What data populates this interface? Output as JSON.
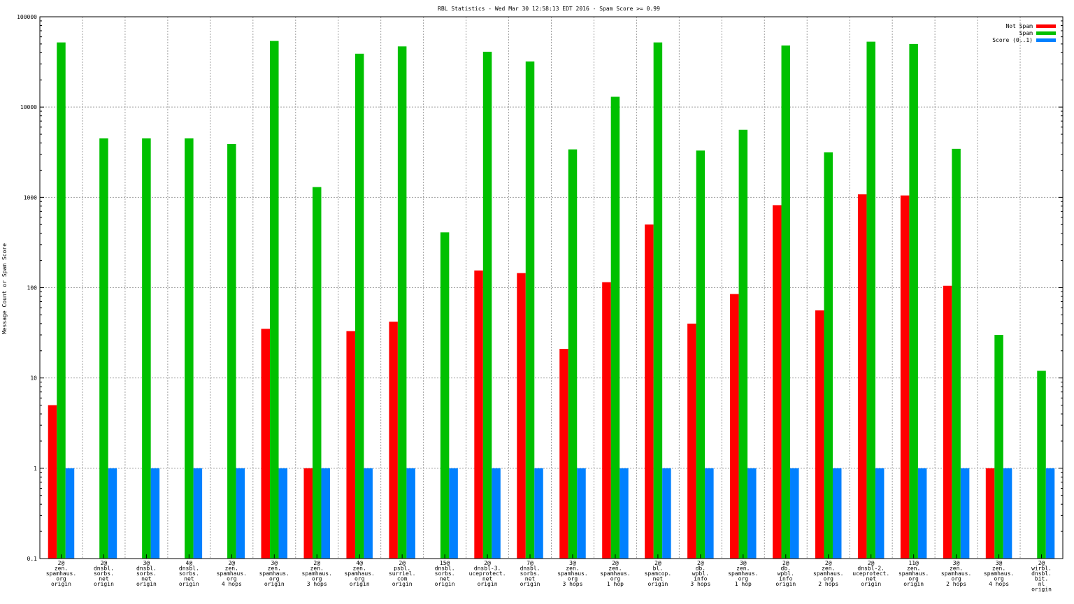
{
  "chart_data": {
    "type": "bar",
    "title": "RBL Statistics - Wed Mar 30 12:58:13 EDT 2016 - Spam Score >= 0.99",
    "xlabel": "",
    "ylabel": "Message Count or Spam Score",
    "yscale": "log",
    "ylim": [
      0.1,
      100000
    ],
    "yticks": [
      {
        "value": 0.1,
        "label": "0.1"
      },
      {
        "value": 1,
        "label": "1"
      },
      {
        "value": 10,
        "label": "10"
      },
      {
        "value": 100,
        "label": "100"
      },
      {
        "value": 1000,
        "label": "1000"
      },
      {
        "value": 10000,
        "label": "10000"
      },
      {
        "value": 100000,
        "label": "100000"
      }
    ],
    "grid": true,
    "legend_position": "top-right",
    "categories": [
      [
        "2@",
        "zen.",
        "spamhaus.",
        "org",
        "origin"
      ],
      [
        "2@",
        "dnsbl.",
        "sorbs.",
        "net",
        "origin"
      ],
      [
        "3@",
        "dnsbl.",
        "sorbs.",
        "net",
        "origin"
      ],
      [
        "4@",
        "dnsbl.",
        "sorbs.",
        "net",
        "origin"
      ],
      [
        "2@",
        "zen.",
        "spamhaus.",
        "org",
        "4 hops"
      ],
      [
        "3@",
        "zen.",
        "spamhaus.",
        "org",
        "origin"
      ],
      [
        "2@",
        "zen.",
        "spamhaus.",
        "org",
        "3 hops"
      ],
      [
        "4@",
        "zen.",
        "spamhaus.",
        "org",
        "origin"
      ],
      [
        "2@",
        "psbl.",
        "surriel.",
        "com",
        "origin"
      ],
      [
        "15@",
        "dnsbl.",
        "sorbs.",
        "net",
        "origin"
      ],
      [
        "2@",
        "dnsbl-3.",
        "uceprotect.",
        "net",
        "origin"
      ],
      [
        "7@",
        "dnsbl.",
        "sorbs.",
        "net",
        "origin"
      ],
      [
        "3@",
        "zen.",
        "spamhaus.",
        "org",
        "3 hops"
      ],
      [
        "2@",
        "zen.",
        "spamhaus.",
        "org",
        "1 hop"
      ],
      [
        "2@",
        "bl.",
        "spamcop.",
        "net",
        "origin"
      ],
      [
        "2@",
        "db.",
        "wpbl.",
        "info",
        "3 hops"
      ],
      [
        "3@",
        "zen.",
        "spamhaus.",
        "org",
        "1 hop"
      ],
      [
        "2@",
        "db.",
        "wpbl.",
        "info",
        "origin"
      ],
      [
        "2@",
        "zen.",
        "spamhaus.",
        "org",
        "2 hops"
      ],
      [
        "2@",
        "dnsbl-2.",
        "uceprotect.",
        "net",
        "origin"
      ],
      [
        "11@",
        "zen.",
        "spamhaus.",
        "org",
        "origin"
      ],
      [
        "3@",
        "zen.",
        "spamhaus.",
        "org",
        "2 hops"
      ],
      [
        "3@",
        "zen.",
        "spamhaus.",
        "org",
        "4 hops"
      ],
      [
        "2@",
        "wirbl.",
        "dnsbl.",
        "bit.",
        "nl",
        "origin"
      ]
    ],
    "series": [
      {
        "name": "Not Spam",
        "color": "#ff0000",
        "values": [
          5,
          null,
          null,
          null,
          null,
          35,
          1,
          33,
          42,
          null,
          155,
          145,
          21,
          115,
          500,
          40,
          85,
          820,
          56,
          1080,
          1050,
          105,
          1,
          null
        ]
      },
      {
        "name": "Spam",
        "color": "#00c000",
        "values": [
          52000,
          4500,
          4500,
          4500,
          3900,
          54000,
          1300,
          39000,
          47000,
          410,
          41000,
          32000,
          3400,
          13000,
          52000,
          3300,
          5600,
          48000,
          3150,
          53000,
          50000,
          3450,
          30,
          12
        ]
      },
      {
        "name": "Score (0..1)",
        "color": "#0080ff",
        "values": [
          1,
          1,
          1,
          1,
          1,
          1,
          1,
          1,
          1,
          1,
          1,
          1,
          1,
          1,
          1,
          1,
          1,
          1,
          1,
          1,
          1,
          1,
          1,
          1
        ]
      }
    ]
  }
}
